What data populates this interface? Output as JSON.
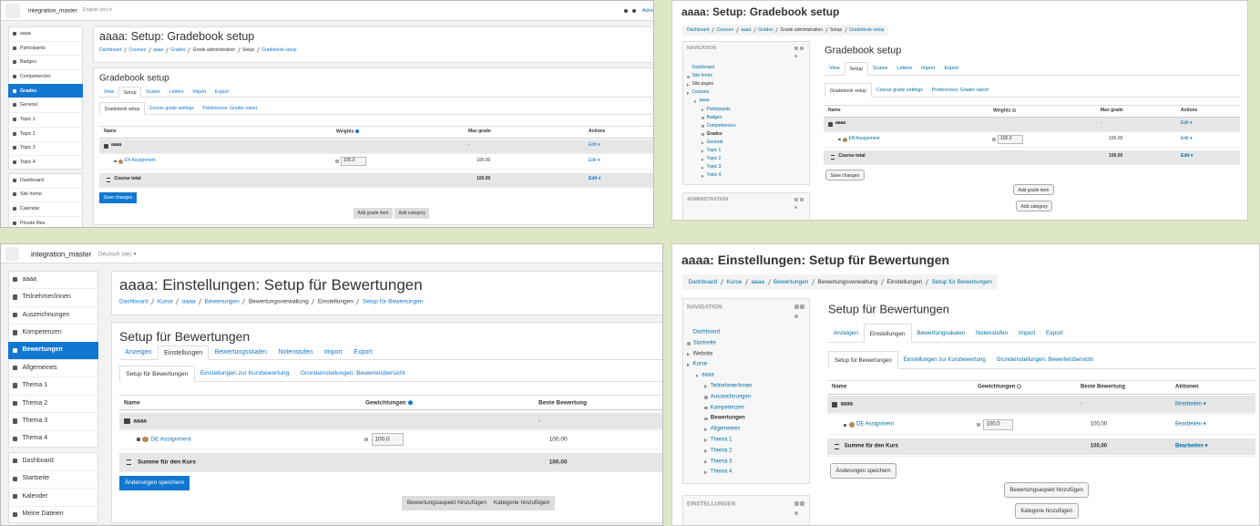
{
  "panels": [
    {
      "navbar": {
        "site": "integration_master",
        "language": "English (en) ▾",
        "user": "Admin"
      },
      "sidebar": [
        [
          "aaaa",
          "Participants",
          "Badges",
          "Competencies",
          "Grades",
          "General",
          "Topic 1",
          "Topic 2",
          "Topic 3",
          "Topic 4"
        ],
        [
          "Dashboard",
          "Site home",
          "Calendar",
          "Private files"
        ]
      ],
      "title": "aaaa: Setup: Gradebook setup",
      "breadcrumb": [
        "Dashboard",
        "Courses",
        "aaaa",
        "Grades",
        "Grade administration",
        "Setup",
        "Gradebook setup"
      ],
      "heading": "Gradebook setup",
      "tabs": [
        "View",
        "Setup",
        "Scales",
        "Letters",
        "Import",
        "Export"
      ],
      "subtabs": [
        "Gradebook setup",
        "Course grade settings",
        "Preferences: Grader report"
      ],
      "table": {
        "columns": [
          "Name",
          "Weights",
          "Max grade",
          "Actions"
        ],
        "rows": [
          [
            "aaaa",
            null,
            "-",
            "Edit ▾"
          ],
          [
            "EN Assignment",
            "100.0",
            "100.00",
            "Edit ▾"
          ],
          [
            "Course total",
            null,
            "100.00",
            "Edit ▾"
          ]
        ]
      },
      "buttons": [
        "Save changes",
        "Add grade item",
        "Add category"
      ]
    },
    {
      "title": "aaaa: Setup: Gradebook setup",
      "breadcrumb": [
        "Dashboard",
        "Courses",
        "aaaa",
        "Grades",
        "Grade administration",
        "Setup",
        "Gradebook setup"
      ],
      "navigation": [
        {
          "title": "NAVIGATION",
          "items": [
            "Dashboard",
            "Site home",
            "Site pages",
            "Courses",
            "aaaa",
            "Participants",
            "Badges",
            "Competencies",
            "Grades",
            "General",
            "Topic 1",
            "Topic 2",
            "Topic 3",
            "Topic 4"
          ]
        },
        {
          "title": "ADMINISTRATION"
        }
      ],
      "heading": "Gradebook setup",
      "tabs": [
        "View",
        "Setup",
        "Scales",
        "Letters",
        "Import",
        "Export"
      ],
      "subtabs": [
        "Gradebook setup",
        "Course grade settings",
        "Preferences: Grader report"
      ],
      "table": {
        "columns": [
          "Name",
          "Weights",
          "Max grade",
          "Actions"
        ],
        "rows": [
          [
            "aaaa",
            null,
            "-",
            "Edit ▾"
          ],
          [
            "EN Assignment",
            "100.0",
            "100.00",
            "Edit ▾"
          ],
          [
            "Course total",
            null,
            "100.00",
            "Edit ▾"
          ]
        ]
      },
      "buttons": [
        "Save changes",
        "Add grade item",
        "Add category"
      ]
    },
    {
      "navbar": {
        "site": "integration_master",
        "language": "Deutsch (de) ▾"
      },
      "sidebar": [
        [
          "aaaa",
          "Teilnehmer/innen",
          "Auszeichnungen",
          "Kompetenzen",
          "Bewertungen",
          "Allgemeines",
          "Thema 1",
          "Thema 2",
          "Thema 3",
          "Thema 4"
        ],
        [
          "Dashboard",
          "Startseite",
          "Kalender",
          "Meine Dateien"
        ]
      ],
      "title": "aaaa: Einstellungen: Setup für Bewertungen",
      "breadcrumb": [
        "Dashboard",
        "Kurse",
        "aaaa",
        "Bewertungen",
        "Bewertungsverwaltung",
        "Einstellungen",
        "Setup für Bewertungen"
      ],
      "heading": "Setup für Bewertungen",
      "tabs": [
        "Anzeigen",
        "Einstellungen",
        "Bewertungsskalen",
        "Notenstufen",
        "Import",
        "Export"
      ],
      "subtabs": [
        "Setup für Bewertungen",
        "Einstellungen zur Kursbewertung",
        "Grundeinstellungen: Bewerterübersicht"
      ],
      "table": {
        "columns": [
          "Name",
          "Gewichtungen",
          "Beste Bewertung"
        ],
        "rows": [
          [
            "aaaa",
            null,
            "-"
          ],
          [
            "DE Assignment",
            "100.0",
            "100,00"
          ],
          [
            "Summe für den Kurs",
            null,
            "100,00"
          ]
        ]
      },
      "buttons": [
        "Änderungen speichern",
        "Bewertungsaspekt hinzufügen",
        "Kategorie hinzufügen"
      ]
    },
    {
      "title": "aaaa: Einstellungen: Setup für Bewertungen",
      "breadcrumb": [
        "Dashboard",
        "Kurse",
        "aaaa",
        "Bewertungen",
        "Bewertungsverwaltung",
        "Einstellungen",
        "Setup für Bewertungen"
      ],
      "navigation": [
        {
          "title": "NAVIGATION",
          "items": [
            "Dashboard",
            "Startseite",
            "Website",
            "Kurse",
            "aaaa",
            "Teilnehmer/innen",
            "Auszeichnungen",
            "Kompetenzen",
            "Bewertungen",
            "Allgemeines",
            "Thema 1",
            "Thema 2",
            "Thema 3",
            "Thema 4"
          ]
        },
        {
          "title": "EINSTELLUNGEN"
        }
      ],
      "heading": "Setup für Bewertungen",
      "tabs": [
        "Anzeigen",
        "Einstellungen",
        "Bewertungsskalen",
        "Notenstufen",
        "Import",
        "Export"
      ],
      "subtabs": [
        "Setup für Bewertungen",
        "Einstellungen zur Kursbewertung",
        "Grundeinstellungen: Bewerterübersicht"
      ],
      "table": {
        "columns": [
          "Name",
          "Gewichtungen",
          "Beste Bewertung",
          "Aktionen"
        ],
        "rows": [
          [
            "aaaa",
            null,
            "-",
            "Bearbeiten ▾"
          ],
          [
            "DE Assignment",
            "100,0",
            "100,00",
            "Bearbeiten ▾"
          ],
          [
            "Summe für den Kurs",
            null,
            "100,00",
            "Bearbeiten ▾"
          ]
        ]
      },
      "buttons": [
        "Änderungen speichern",
        "Bewertungsaspekt hinzufügen",
        "Kategorie hinzufügen"
      ]
    }
  ]
}
